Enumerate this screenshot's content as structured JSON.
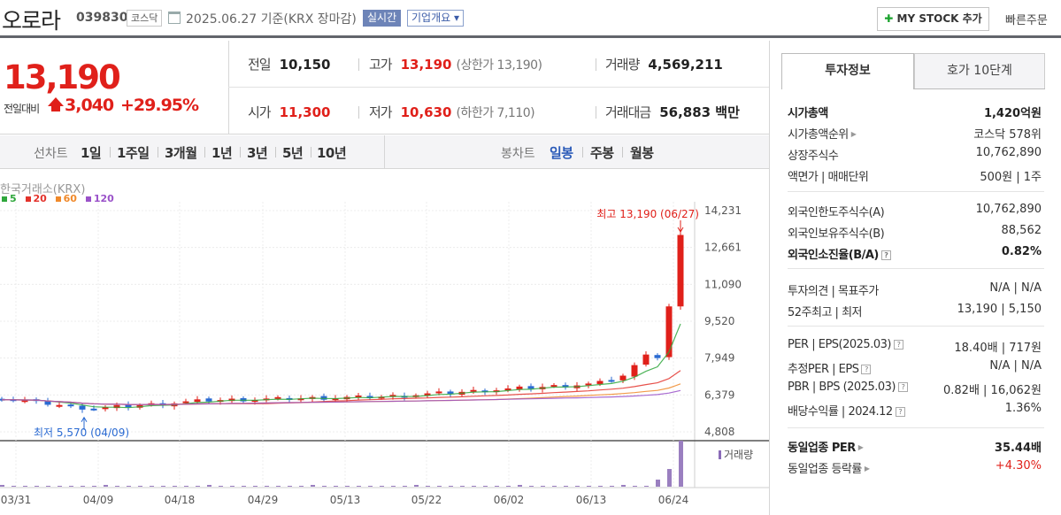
{
  "header": {
    "stock_name": "오로라",
    "stock_code": "039830",
    "market": "코스닥",
    "date_text": "2025.06.27  기준(KRX 장마감)",
    "realtime_label": "실시간",
    "corp_overview_label": "기업개요 ▾",
    "mystock_label": "MY STOCK 추가",
    "quick_order_label": "빠른주문"
  },
  "price": {
    "current": "13,190",
    "change_label": "전일대비",
    "change_amount": "3,040",
    "change_rate": "+29.95%"
  },
  "stats": {
    "prev_close_label": "전일",
    "prev_close": "10,150",
    "high_label": "고가",
    "high": "13,190",
    "upper_limit_text": "(상한가 13,190)",
    "volume_label": "거래량",
    "volume": "4,569,211",
    "open_label": "시가",
    "open": "11,300",
    "low_label": "저가",
    "low": "10,630",
    "lower_limit_text": "(하한가 7,110)",
    "trade_value_label": "거래대금",
    "trade_value": "56,883 백만"
  },
  "chart_controls": {
    "line_chart_label": "선차트",
    "periods": [
      "1일",
      "1주일",
      "3개월",
      "1년",
      "3년",
      "5년",
      "10년"
    ],
    "candle_chart_label": "봉차트",
    "candle_periods": [
      "일봉",
      "주봉",
      "월봉"
    ],
    "active_candle": "일봉"
  },
  "chart_data": {
    "type": "candlestick",
    "source": "한국거래소(KRX)",
    "ma_legend": [
      "5",
      "20",
      "60",
      "120"
    ],
    "ma_colors": [
      "#2fa73c",
      "#e3322b",
      "#f0892a",
      "#9a52c9"
    ],
    "y_ticks": [
      "14,231",
      "12,661",
      "11,090",
      "9,520",
      "7,949",
      "6,379",
      "4,808"
    ],
    "y_values": [
      14231,
      12661,
      11090,
      9520,
      7949,
      6379,
      4808
    ],
    "x_ticks": [
      "03/31",
      "04/09",
      "04/18",
      "04/29",
      "05/13",
      "05/22",
      "06/02",
      "06/13",
      "06/24"
    ],
    "max_label": "최고 13,190 (06/27)",
    "min_label": "최저 5,570 (04/09)",
    "volume_label": "거래량",
    "up_color": "#e0201a",
    "down_color": "#2a6ad2"
  },
  "info_panel": {
    "tab_info": "투자정보",
    "tab_hoga": "호가 10단계",
    "group1": [
      {
        "k": "시가총액",
        "v": "1,420억원",
        "bold": true
      },
      {
        "k": "시가총액순위",
        "v": "코스닥 578위"
      },
      {
        "k": "상장주식수",
        "v": "10,762,890"
      },
      {
        "k": "액면가 | 매매단위",
        "v": "500원 | 1주"
      }
    ],
    "group2": [
      {
        "k": "외국인한도주식수(A)",
        "v": "10,762,890"
      },
      {
        "k": "외국인보유주식수(B)",
        "v": "88,562"
      },
      {
        "k": "외국인소진율(B/A)",
        "v": "0.82%",
        "bold": true
      }
    ],
    "group3": [
      {
        "k": "투자의견 | 목표주가",
        "v": "N/A | N/A"
      },
      {
        "k": "52주최고 | 최저",
        "v": "13,190 | 5,150"
      }
    ],
    "group4": [
      {
        "k": "PER | EPS(2025.03)",
        "v": "18.40배 | 717원"
      },
      {
        "k": "추정PER | EPS",
        "v": "N/A | N/A"
      },
      {
        "k": "PBR | BPS (2025.03)",
        "v": "0.82배 | 16,062원"
      },
      {
        "k": "배당수익률 | 2024.12",
        "v": "1.36%"
      }
    ],
    "group5": [
      {
        "k": "동일업종 PER",
        "v": "35.44배",
        "bold": true
      },
      {
        "k": "동일업종 등락률",
        "v": "+4.30%",
        "red": true
      }
    ]
  }
}
